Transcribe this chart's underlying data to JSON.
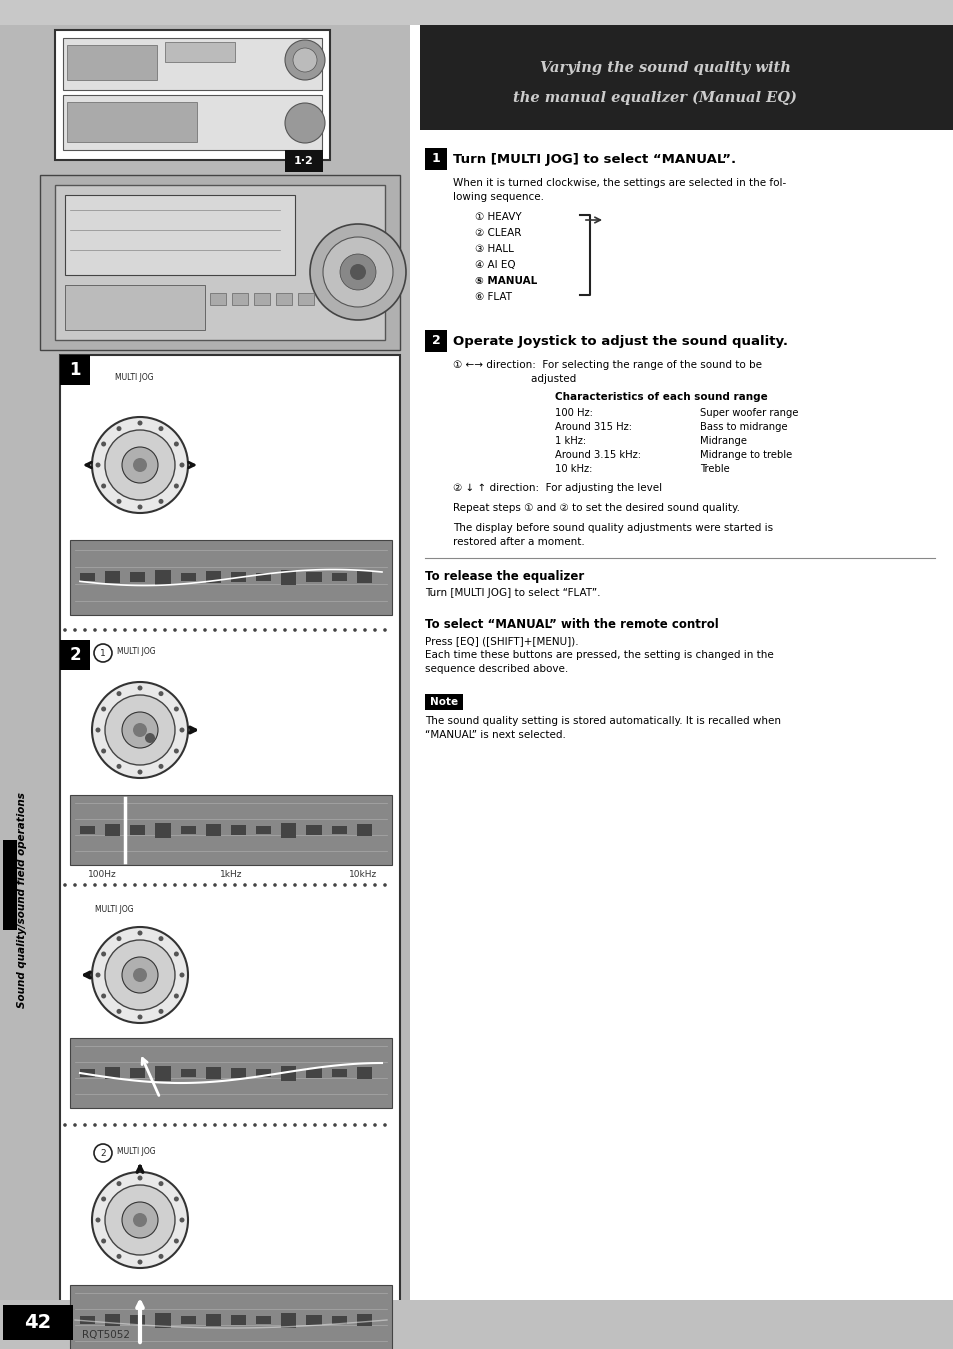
{
  "page_bg": "#d8d8d8",
  "left_panel_bg": "#c0c0c0",
  "right_panel_bg": "#ffffff",
  "header_bg": "#1a1a1a",
  "step1_title": "Turn [MULTI JOG] to select “MANUAL”.",
  "step1_desc1": "When it is turned clockwise, the settings are selected in the fol-",
  "step1_desc2": "lowing sequence.",
  "step1_list": [
    "① HEAVY",
    "② CLEAR",
    "③ HALL",
    "④ AI EQ",
    "⑤ MANUAL",
    "⑥ FLAT"
  ],
  "step2_title": "Operate Joystick to adjust the sound quality.",
  "step2_sub1a": "① ←→ direction:  For selecting the range of the sound to be",
  "step2_sub1b": "                        adjusted",
  "step2_chars_title": "Characteristics of each sound range",
  "step2_chars": [
    [
      "100 Hz:",
      "Super woofer range"
    ],
    [
      "Around 315 Hz:",
      "Bass to midrange"
    ],
    [
      "1 kHz:",
      "Midrange"
    ],
    [
      "Around 3.15 kHz:",
      "Midrange to treble"
    ],
    [
      "10 kHz:",
      "Treble"
    ]
  ],
  "step2_sub2": "② ↓ ↑ direction:  For adjusting the level",
  "step2_repeat": "Repeat steps ① and ② to set the desired sound quality.",
  "step2_display1": "The display before sound quality adjustments were started is",
  "step2_display2": "restored after a moment.",
  "release_title": "To release the equalizer",
  "release_text": "Turn [MULTI JOG] to select “FLAT”.",
  "remote_title": "To select “MANUAL” with the remote control",
  "remote_text1": "Press [EQ] ([SHIFT]+[MENU]).",
  "remote_text2": "Each time these buttons are pressed, the setting is changed in the",
  "remote_text3": "sequence described above.",
  "note_label": "Note",
  "note_text1": "The sound quality setting is stored automatically. It is recalled when",
  "note_text2": "“MANUAL” is next selected.",
  "side_label": "Sound quality/sound field operations",
  "page_number": "42",
  "footer_text": "RQT5052"
}
